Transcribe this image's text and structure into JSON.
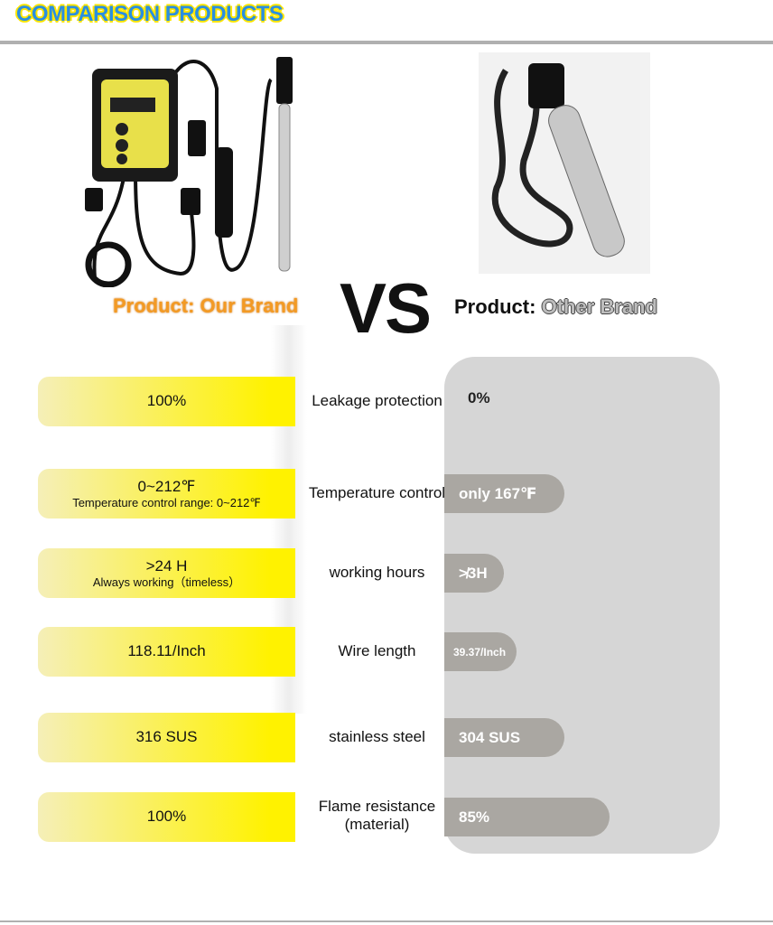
{
  "header": {
    "title": "COMPARISON PRODUCTS"
  },
  "our_product": {
    "label": "Product: Our Brand"
  },
  "vs": "VS",
  "other_product": {
    "prefix": "Product:",
    "name": "Other Brand"
  },
  "rows": [
    {
      "ours": [
        "100%"
      ],
      "feature": [
        "Leakage protection"
      ],
      "theirs": "0%"
    },
    {
      "ours": [
        "0~212℉",
        "Temperature control range: 0~212℉"
      ],
      "feature": [
        "Temperature control"
      ],
      "theirs": "only 167℉"
    },
    {
      "ours": [
        ">24 H",
        "Always working（timeless）"
      ],
      "feature": [
        "working hours"
      ],
      "theirs": "≯3H"
    },
    {
      "ours": [
        "118.11/Inch"
      ],
      "feature": [
        "Wire length"
      ],
      "theirs": "39.37/Inch"
    },
    {
      "ours": [
        "316 SUS"
      ],
      "feature": [
        "stainless steel"
      ],
      "theirs": "304 SUS"
    },
    {
      "ours": [
        "100%"
      ],
      "feature": [
        "Flame resistance",
        "(material)"
      ],
      "theirs": "85%"
    }
  ]
}
